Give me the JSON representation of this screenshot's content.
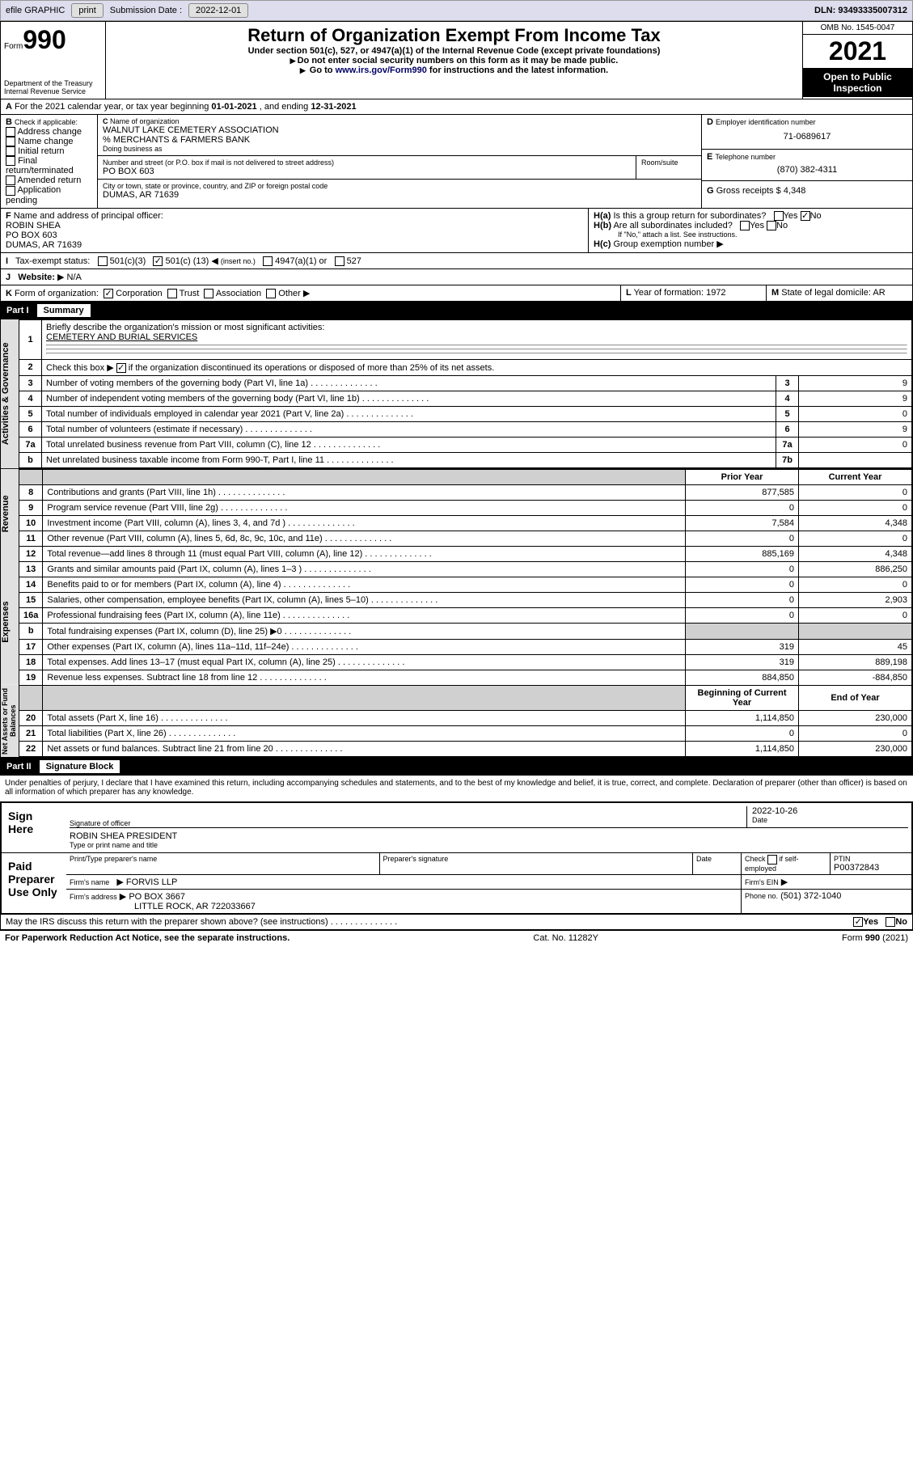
{
  "toolbar": {
    "efile": "efile GRAPHIC",
    "print": "print",
    "submission_label": "Submission Date :",
    "submission_date": "2022-12-01",
    "dln": "DLN: 93493335007312"
  },
  "header": {
    "form": "Form",
    "form_no": "990",
    "dept": "Department of the Treasury",
    "irs": "Internal Revenue Service",
    "title": "Return of Organization Exempt From Income Tax",
    "sub1": "Under section 501(c), 527, or 4947(a)(1) of the Internal Revenue Code (except private foundations)",
    "sub2": "Do not enter social security numbers on this form as it may be made public.",
    "sub3_pre": "Go to ",
    "sub3_link": "www.irs.gov/Form990",
    "sub3_post": " for instructions and the latest information.",
    "omb": "OMB No. 1545-0047",
    "year": "2021",
    "otp1": "Open to Public",
    "otp2": "Inspection"
  },
  "A": {
    "text": "For the 2021 calendar year, or tax year beginning ",
    "begin": "01-01-2021",
    "mid": ", and ending ",
    "end": "12-31-2021"
  },
  "B": {
    "label": "Check if applicable:",
    "items": [
      "Address change",
      "Name change",
      "Initial return",
      "Final return/terminated",
      "Amended return",
      "Application pending"
    ]
  },
  "C": {
    "name_lbl": "Name of organization",
    "name": "WALNUT LAKE CEMETERY ASSOCIATION",
    "care": "% MERCHANTS & FARMERS BANK",
    "dba_lbl": "Doing business as",
    "addr_lbl": "Number and street (or P.O. box if mail is not delivered to street address)",
    "room_lbl": "Room/suite",
    "addr": "PO BOX 603",
    "city_lbl": "City or town, state or province, country, and ZIP or foreign postal code",
    "city": "DUMAS, AR  71639"
  },
  "D": {
    "label": "Employer identification number",
    "value": "71-0689617"
  },
  "E": {
    "label": "Telephone number",
    "value": "(870) 382-4311"
  },
  "G": {
    "label": "Gross receipts $",
    "value": "4,348"
  },
  "F": {
    "label": "Name and address of principal officer:",
    "name": "ROBIN SHEA",
    "addr1": "PO BOX 603",
    "addr2": "DUMAS, AR  71639"
  },
  "H": {
    "a": "Is this a group return for subordinates?",
    "b": "Are all subordinates included?",
    "c": "Group exemption number",
    "yes": "Yes",
    "no": "No",
    "note": "If \"No,\" attach a list. See instructions."
  },
  "I": {
    "label": "Tax-exempt status:",
    "c3": "501(c)(3)",
    "c_pre": "501(c) (",
    "c_no": "13",
    "c_post": ")",
    "insert": "(insert no.)",
    "a1": "4947(a)(1) or",
    "s527": "527"
  },
  "J": {
    "label": "Website:",
    "value": "N/A"
  },
  "K": {
    "label": "Form of organization:",
    "corp": "Corporation",
    "trust": "Trust",
    "assoc": "Association",
    "other": "Other"
  },
  "L": {
    "label": "Year of formation:",
    "value": "1972"
  },
  "M": {
    "label": "State of legal domicile:",
    "value": "AR"
  },
  "part1": {
    "label": "Part I",
    "title": "Summary"
  },
  "summary": {
    "q1": "Briefly describe the organization's mission or most significant activities:",
    "mission": "CEMETERY AND BURIAL SERVICES",
    "q2": "Check this box ▶       if the organization discontinued its operations or disposed of more than 25% of its net assets.",
    "q3": "Number of voting members of the governing body (Part VI, line 1a)",
    "q4": "Number of independent voting members of the governing body (Part VI, line 1b)",
    "q5": "Total number of individuals employed in calendar year 2021 (Part V, line 2a)",
    "q6": "Total number of volunteers (estimate if necessary)",
    "q7a": "Total unrelated business revenue from Part VIII, column (C), line 12",
    "q7b": "Net unrelated business taxable income from Form 990-T, Part I, line 11",
    "v3": "9",
    "v4": "9",
    "v5": "0",
    "v6": "9",
    "v7a": "0",
    "v7b": "",
    "hdr_prior": "Prior Year",
    "hdr_current": "Current Year",
    "rows": [
      {
        "n": "8",
        "t": "Contributions and grants (Part VIII, line 1h)",
        "p": "877,585",
        "c": "0"
      },
      {
        "n": "9",
        "t": "Program service revenue (Part VIII, line 2g)",
        "p": "0",
        "c": "0"
      },
      {
        "n": "10",
        "t": "Investment income (Part VIII, column (A), lines 3, 4, and 7d )",
        "p": "7,584",
        "c": "4,348"
      },
      {
        "n": "11",
        "t": "Other revenue (Part VIII, column (A), lines 5, 6d, 8c, 9c, 10c, and 11e)",
        "p": "0",
        "c": "0"
      },
      {
        "n": "12",
        "t": "Total revenue—add lines 8 through 11 (must equal Part VIII, column (A), line 12)",
        "p": "885,169",
        "c": "4,348"
      },
      {
        "n": "13",
        "t": "Grants and similar amounts paid (Part IX, column (A), lines 1–3 )",
        "p": "0",
        "c": "886,250"
      },
      {
        "n": "14",
        "t": "Benefits paid to or for members (Part IX, column (A), line 4)",
        "p": "0",
        "c": "0"
      },
      {
        "n": "15",
        "t": "Salaries, other compensation, employee benefits (Part IX, column (A), lines 5–10)",
        "p": "0",
        "c": "2,903"
      },
      {
        "n": "16a",
        "t": "Professional fundraising fees (Part IX, column (A), line 11e)",
        "p": "0",
        "c": "0"
      },
      {
        "n": "b",
        "t": "Total fundraising expenses (Part IX, column (D), line 25) ▶0",
        "p": "",
        "c": "",
        "shade": true
      },
      {
        "n": "17",
        "t": "Other expenses (Part IX, column (A), lines 11a–11d, 11f–24e)",
        "p": "319",
        "c": "45"
      },
      {
        "n": "18",
        "t": "Total expenses. Add lines 13–17 (must equal Part IX, column (A), line 25)",
        "p": "319",
        "c": "889,198"
      },
      {
        "n": "19",
        "t": "Revenue less expenses. Subtract line 18 from line 12",
        "p": "884,850",
        "c": "-884,850"
      }
    ],
    "hdr_begin": "Beginning of Current Year",
    "hdr_end": "End of Year",
    "rows2": [
      {
        "n": "20",
        "t": "Total assets (Part X, line 16)",
        "p": "1,114,850",
        "c": "230,000"
      },
      {
        "n": "21",
        "t": "Total liabilities (Part X, line 26)",
        "p": "0",
        "c": "0"
      },
      {
        "n": "22",
        "t": "Net assets or fund balances. Subtract line 21 from line 20",
        "p": "1,114,850",
        "c": "230,000"
      }
    ],
    "vlabels": [
      "Activities & Governance",
      "Revenue",
      "Expenses",
      "Net Assets or Fund Balances"
    ]
  },
  "part2": {
    "label": "Part II",
    "title": "Signature Block"
  },
  "sig": {
    "decl": "Under penalties of perjury, I declare that I have examined this return, including accompanying schedules and statements, and to the best of my knowledge and belief, it is true, correct, and complete. Declaration of preparer (other than officer) is based on all information of which preparer has any knowledge.",
    "sign_here": "Sign Here",
    "sig_officer": "Signature of officer",
    "date": "Date",
    "sig_date": "2022-10-26",
    "officer_name": "ROBIN SHEA  PRESIDENT",
    "type_name": "Type or print name and title",
    "paid": "Paid Preparer Use Only",
    "prep_name_lbl": "Print/Type preparer's name",
    "prep_sig_lbl": "Preparer's signature",
    "date_lbl": "Date",
    "check_se": "Check        if self-employed",
    "ptin_lbl": "PTIN",
    "ptin": "P00372843",
    "firm_name_lbl": "Firm's name",
    "firm_name": "FORVIS LLP",
    "firm_ein_lbl": "Firm's EIN",
    "firm_addr_lbl": "Firm's address",
    "firm_addr": "PO BOX 3667",
    "firm_city": "LITTLE ROCK, AR  722033667",
    "phone_lbl": "Phone no.",
    "phone": "(501) 372-1040",
    "discuss": "May the IRS discuss this return with the preparer shown above? (see instructions)"
  },
  "footer": {
    "pra": "For Paperwork Reduction Act Notice, see the separate instructions.",
    "cat": "Cat. No. 11282Y",
    "form": "Form 990 (2021)"
  },
  "colors": {
    "toolbar_bg": "#dde4ee",
    "black": "#000000",
    "link": "#003366",
    "shade": "#d0d0d0"
  }
}
